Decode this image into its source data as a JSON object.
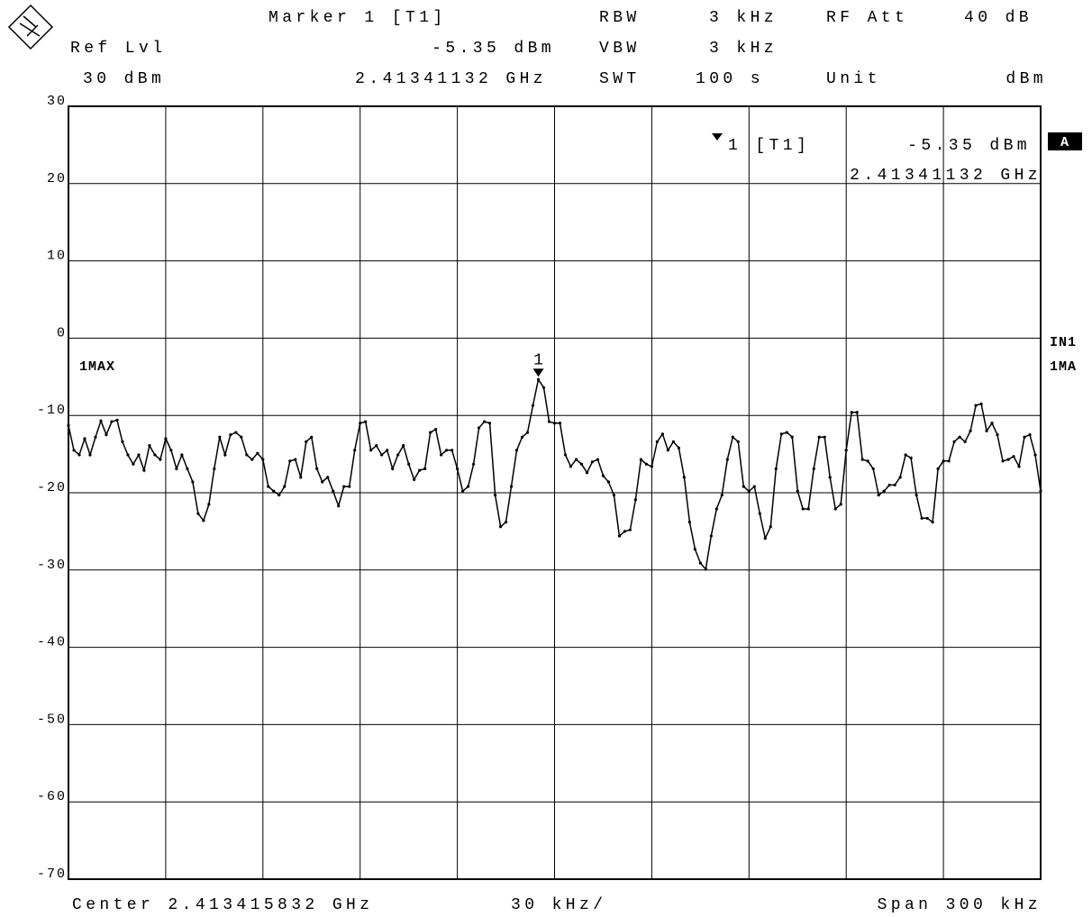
{
  "chart_data": {
    "type": "line",
    "header": [
      [
        "Marker 1 [T1]",
        "RBW",
        "3 kHz",
        "RF Att",
        "40 dB"
      ],
      [
        "Ref Lvl",
        "-5.35 dBm",
        "VBW",
        "3 kHz"
      ],
      [
        "30 dBm",
        "2.41341132 GHz",
        "SWT",
        "100 s",
        "Unit",
        "dBm"
      ]
    ],
    "marker_info": {
      "name": "1 [T1]",
      "level": "-5.35 dBm",
      "frequency": "2.41341132 GHz"
    },
    "marker_label": "1",
    "trace_label": "1MAX",
    "side_labels": [
      "A",
      "IN1",
      "1MA"
    ],
    "footer": [
      "Center 2.413415832 GHz",
      "30 kHz/",
      "Span 300 kHz"
    ],
    "ylim": [
      -70,
      30
    ],
    "yticks": [
      -70,
      -60,
      -50,
      -40,
      -30,
      -20,
      -10,
      0,
      10,
      20,
      30
    ],
    "grid": true,
    "color": "#000000",
    "values": [
      -11.3,
      -14.5,
      -15.1,
      -13.0,
      -15.1,
      -12.8,
      -10.7,
      -12.5,
      -10.8,
      -10.6,
      -13.4,
      -15.1,
      -16.3,
      -15.1,
      -17.1,
      -13.9,
      -15.1,
      -15.7,
      -13.0,
      -14.5,
      -16.9,
      -15.1,
      -16.9,
      -18.6,
      -22.7,
      -23.6,
      -21.5,
      -16.9,
      -12.8,
      -15.1,
      -12.5,
      -12.2,
      -12.8,
      -15.1,
      -15.7,
      -14.9,
      -15.7,
      -19.2,
      -19.8,
      -20.3,
      -19.2,
      -15.9,
      -15.7,
      -18.0,
      -13.4,
      -12.8,
      -16.9,
      -18.6,
      -18.0,
      -19.8,
      -21.7,
      -19.2,
      -19.2,
      -14.5,
      -11.0,
      -10.8,
      -14.5,
      -13.9,
      -15.1,
      -14.5,
      -16.9,
      -15.1,
      -13.9,
      -16.3,
      -18.3,
      -17.1,
      -16.9,
      -12.2,
      -11.8,
      -15.1,
      -14.5,
      -14.5,
      -16.9,
      -19.8,
      -19.2,
      -16.3,
      -11.6,
      -10.8,
      -11.0,
      -20.3,
      -24.4,
      -23.8,
      -19.2,
      -14.5,
      -12.8,
      -12.2,
      -8.7,
      -5.35,
      -6.4,
      -10.8,
      -11.0,
      -11.0,
      -15.1,
      -16.6,
      -15.7,
      -16.3,
      -17.4,
      -16.0,
      -15.7,
      -17.8,
      -18.6,
      -20.3,
      -25.6,
      -25.0,
      -24.8,
      -20.9,
      -15.7,
      -16.3,
      -16.6,
      -13.4,
      -12.4,
      -14.5,
      -13.4,
      -14.2,
      -18.0,
      -23.8,
      -27.3,
      -29.1,
      -29.9,
      -25.6,
      -22.1,
      -20.3,
      -15.7,
      -12.8,
      -13.4,
      -19.2,
      -19.8,
      -19.2,
      -22.7,
      -25.9,
      -24.4,
      -16.9,
      -12.4,
      -12.2,
      -12.8,
      -19.8,
      -22.1,
      -22.1,
      -16.9,
      -12.8,
      -12.8,
      -18.0,
      -22.1,
      -21.5,
      -14.5,
      -9.6,
      -9.6,
      -15.7,
      -15.9,
      -16.9,
      -20.3,
      -19.8,
      -19.0,
      -19.0,
      -18.0,
      -15.1,
      -15.5,
      -20.3,
      -23.3,
      -23.3,
      -23.8,
      -16.9,
      -15.9,
      -15.9,
      -13.4,
      -12.8,
      -13.4,
      -12.0,
      -8.7,
      -8.5,
      -12.0,
      -11.0,
      -12.5,
      -15.9,
      -15.7,
      -15.3,
      -16.6,
      -12.8,
      -12.5,
      -15.1,
      -19.8
    ]
  }
}
